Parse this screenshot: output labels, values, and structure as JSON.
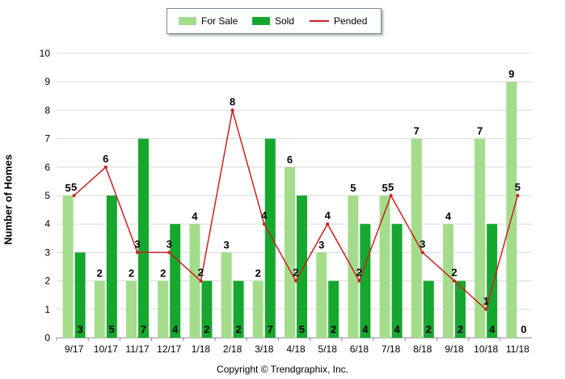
{
  "legend": {
    "for_sale": "For Sale",
    "sold": "Sold",
    "pended": "Pended"
  },
  "copyright": "Copyright © Trendgraphix, Inc.",
  "colors": {
    "for_sale": "#a3dd8c",
    "sold": "#16a82e",
    "pended": "#cc1f1f",
    "grid": "#d8d8d8"
  },
  "chart_data": {
    "type": "bar",
    "ylabel": "Number of Homes",
    "ylim": [
      0,
      10
    ],
    "yticks": [
      0,
      1,
      2,
      3,
      4,
      5,
      6,
      7,
      8,
      9,
      10
    ],
    "grid": true,
    "legend_position": "top-center",
    "categories": [
      "9/17",
      "10/17",
      "11/17",
      "12/17",
      "1/18",
      "2/18",
      "3/18",
      "4/18",
      "5/18",
      "6/18",
      "7/18",
      "8/18",
      "9/18",
      "10/18",
      "11/18"
    ],
    "series": [
      {
        "name": "For Sale",
        "type": "bar",
        "values": [
          5,
          2,
          2,
          2,
          4,
          3,
          2,
          6,
          3,
          5,
          5,
          7,
          4,
          7,
          9
        ]
      },
      {
        "name": "Sold",
        "type": "bar",
        "values": [
          3,
          5,
          7,
          4,
          2,
          2,
          7,
          5,
          2,
          4,
          4,
          2,
          2,
          4,
          0
        ]
      },
      {
        "name": "Pended",
        "type": "line",
        "values": [
          5,
          6,
          3,
          3,
          2,
          8,
          4,
          2,
          4,
          2,
          5,
          3,
          2,
          1,
          5
        ]
      }
    ]
  }
}
